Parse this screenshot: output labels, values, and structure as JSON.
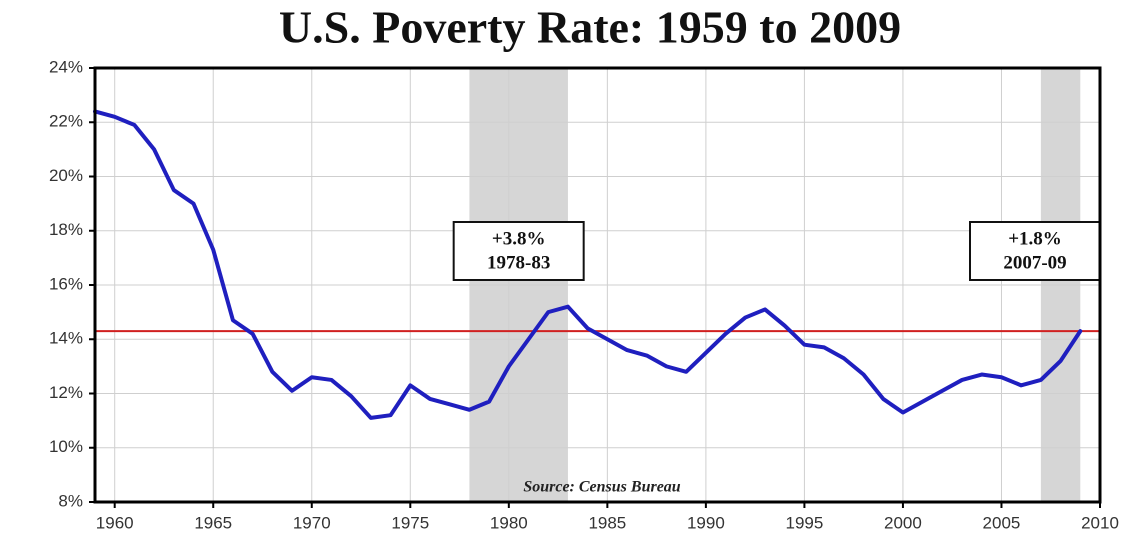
{
  "chart_data": {
    "type": "line",
    "title": "U.S. Poverty Rate: 1959 to 2009",
    "source": "Source: Census Bureau",
    "x": [
      1959,
      1960,
      1961,
      1962,
      1963,
      1964,
      1965,
      1966,
      1967,
      1968,
      1969,
      1970,
      1971,
      1972,
      1973,
      1974,
      1975,
      1976,
      1977,
      1978,
      1979,
      1980,
      1981,
      1982,
      1983,
      1984,
      1985,
      1986,
      1987,
      1988,
      1989,
      1990,
      1991,
      1992,
      1993,
      1994,
      1995,
      1996,
      1997,
      1998,
      1999,
      2000,
      2001,
      2002,
      2003,
      2004,
      2005,
      2006,
      2007,
      2008,
      2009
    ],
    "series": [
      {
        "name": "Poverty rate",
        "color": "#1f1fbf",
        "values": [
          22.4,
          22.2,
          21.9,
          21.0,
          19.5,
          19.0,
          17.3,
          14.7,
          14.2,
          12.8,
          12.1,
          12.6,
          12.5,
          11.9,
          11.1,
          11.2,
          12.3,
          11.8,
          11.6,
          11.4,
          11.7,
          13.0,
          14.0,
          15.0,
          15.2,
          14.4,
          14.0,
          13.6,
          13.4,
          13.0,
          12.8,
          13.5,
          14.2,
          14.8,
          15.1,
          14.5,
          13.8,
          13.7,
          13.3,
          12.7,
          11.8,
          11.3,
          11.7,
          12.1,
          12.5,
          12.7,
          12.6,
          12.3,
          12.5,
          13.2,
          14.3
        ]
      }
    ],
    "reference_line": 14.3,
    "reference_color": "#d02020",
    "shaded_ranges": [
      [
        1978,
        1983
      ],
      [
        2007,
        2009
      ]
    ],
    "shade_color": "#d6d6d6",
    "annotations": [
      [
        "+3.8%",
        "1978-83"
      ],
      [
        "+1.8%",
        "2007-09"
      ]
    ],
    "xlim": [
      1959,
      2010
    ],
    "xticks": [
      1960,
      1965,
      1970,
      1975,
      1980,
      1985,
      1990,
      1995,
      2000,
      2005,
      2010
    ],
    "ylim": [
      8,
      24
    ],
    "yticks": [
      {
        "value": 8,
        "label": "8%"
      },
      {
        "value": 10,
        "label": "10%"
      },
      {
        "value": 12,
        "label": "12%"
      },
      {
        "value": 14,
        "label": "14%"
      },
      {
        "value": 16,
        "label": "16%"
      },
      {
        "value": 18,
        "label": "18%"
      },
      {
        "value": 20,
        "label": "20%"
      },
      {
        "value": 22,
        "label": "22%"
      },
      {
        "value": 24,
        "label": "24%"
      }
    ],
    "grid": true
  }
}
